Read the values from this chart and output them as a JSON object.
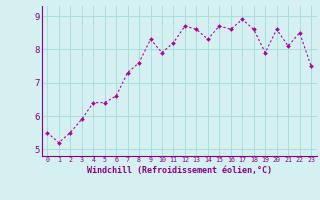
{
  "x": [
    0,
    1,
    2,
    3,
    4,
    5,
    6,
    7,
    8,
    9,
    10,
    11,
    12,
    13,
    14,
    15,
    16,
    17,
    18,
    19,
    20,
    21,
    22,
    23
  ],
  "y": [
    5.5,
    5.2,
    5.5,
    5.9,
    6.4,
    6.4,
    6.6,
    7.3,
    7.6,
    8.3,
    7.9,
    8.2,
    8.7,
    8.6,
    8.3,
    8.7,
    8.6,
    8.9,
    8.6,
    7.9,
    8.6,
    8.1,
    8.5,
    7.5
  ],
  "line_color": "#aa00aa",
  "marker": "D",
  "marker_size": 2.0,
  "bg_color": "#d4f0f0",
  "grid_color": "#aadddd",
  "axis_color": "#880088",
  "xlabel": "Windchill (Refroidissement éolien,°C)",
  "xlim": [
    -0.5,
    23.5
  ],
  "ylim": [
    4.8,
    9.3
  ],
  "yticks": [
    5,
    6,
    7,
    8,
    9
  ],
  "xticks": [
    0,
    1,
    2,
    3,
    4,
    5,
    6,
    7,
    8,
    9,
    10,
    11,
    12,
    13,
    14,
    15,
    16,
    17,
    18,
    19,
    20,
    21,
    22,
    23
  ],
  "linewidth": 0.8
}
